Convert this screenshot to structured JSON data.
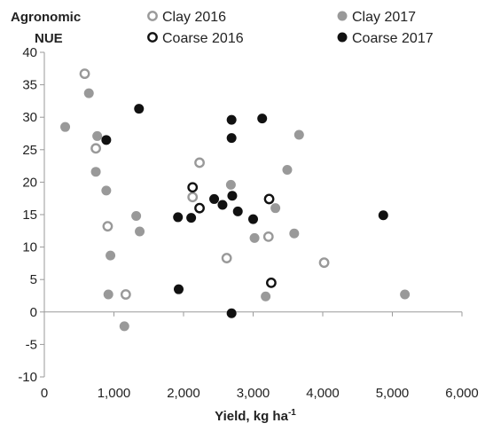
{
  "chart_data": {
    "type": "scatter",
    "title": "",
    "xlabel": "Yield, kg ha",
    "xlabel_superscript": "-1",
    "ylabel_line1": "Agronomic",
    "ylabel_line2": "NUE",
    "xlim": [
      0,
      6000
    ],
    "ylim": [
      -10,
      40
    ],
    "x_ticks": [
      {
        "value": 0,
        "label": "0"
      },
      {
        "value": 1000,
        "label": "1,000"
      },
      {
        "value": 2000,
        "label": "2,000"
      },
      {
        "value": 3000,
        "label": "3,000"
      },
      {
        "value": 4000,
        "label": "4,000"
      },
      {
        "value": 5000,
        "label": "5,000"
      },
      {
        "value": 6000,
        "label": "6,000"
      }
    ],
    "y_ticks": [
      {
        "value": -10,
        "label": "-10"
      },
      {
        "value": -5,
        "label": "-5"
      },
      {
        "value": 0,
        "label": "0"
      },
      {
        "value": 5,
        "label": "5"
      },
      {
        "value": 10,
        "label": "10"
      },
      {
        "value": 15,
        "label": "15"
      },
      {
        "value": 20,
        "label": "20"
      },
      {
        "value": 25,
        "label": "25"
      },
      {
        "value": 30,
        "label": "30"
      },
      {
        "value": 35,
        "label": "35"
      },
      {
        "value": 40,
        "label": "40"
      }
    ],
    "grid": false,
    "legend_position": "top",
    "series": [
      {
        "name": "Clay 2016",
        "marker": "open-circle",
        "color": "#999999",
        "points": [
          {
            "x": 580,
            "y": 36.7
          },
          {
            "x": 740,
            "y": 25.2
          },
          {
            "x": 910,
            "y": 13.2
          },
          {
            "x": 1170,
            "y": 2.7
          },
          {
            "x": 2130,
            "y": 17.7
          },
          {
            "x": 2230,
            "y": 23.0
          },
          {
            "x": 2620,
            "y": 8.3
          },
          {
            "x": 3220,
            "y": 11.6
          },
          {
            "x": 4020,
            "y": 7.6
          }
        ]
      },
      {
        "name": "Clay 2017",
        "marker": "filled-circle",
        "color": "#999999",
        "points": [
          {
            "x": 300,
            "y": 28.5
          },
          {
            "x": 640,
            "y": 33.7
          },
          {
            "x": 760,
            "y": 27.1
          },
          {
            "x": 740,
            "y": 21.6
          },
          {
            "x": 890,
            "y": 18.7
          },
          {
            "x": 920,
            "y": 2.7
          },
          {
            "x": 950,
            "y": 8.7
          },
          {
            "x": 1150,
            "y": -2.2
          },
          {
            "x": 1320,
            "y": 14.8
          },
          {
            "x": 1370,
            "y": 12.4
          },
          {
            "x": 2680,
            "y": 19.6
          },
          {
            "x": 3020,
            "y": 11.4
          },
          {
            "x": 3180,
            "y": 2.4
          },
          {
            "x": 3320,
            "y": 16.0
          },
          {
            "x": 3490,
            "y": 21.9
          },
          {
            "x": 3590,
            "y": 12.1
          },
          {
            "x": 3660,
            "y": 27.3
          },
          {
            "x": 5180,
            "y": 2.7
          }
        ]
      },
      {
        "name": "Coarse 2016",
        "marker": "open-circle",
        "color": "#111111",
        "points": [
          {
            "x": 2130,
            "y": 19.2
          },
          {
            "x": 2230,
            "y": 16.0
          },
          {
            "x": 3230,
            "y": 17.4
          },
          {
            "x": 3260,
            "y": 4.5
          }
        ]
      },
      {
        "name": "Coarse 2017",
        "marker": "filled-circle",
        "color": "#111111",
        "points": [
          {
            "x": 890,
            "y": 26.5
          },
          {
            "x": 1360,
            "y": 31.3
          },
          {
            "x": 1920,
            "y": 14.6
          },
          {
            "x": 1930,
            "y": 3.5
          },
          {
            "x": 2110,
            "y": 14.5
          },
          {
            "x": 2440,
            "y": 17.4
          },
          {
            "x": 2560,
            "y": 16.5
          },
          {
            "x": 2690,
            "y": 29.6
          },
          {
            "x": 2690,
            "y": 26.8
          },
          {
            "x": 2700,
            "y": 17.9
          },
          {
            "x": 2690,
            "y": -0.2
          },
          {
            "x": 2780,
            "y": 15.5
          },
          {
            "x": 3000,
            "y": 14.3
          },
          {
            "x": 3130,
            "y": 29.8
          },
          {
            "x": 4870,
            "y": 14.9
          }
        ]
      }
    ]
  }
}
